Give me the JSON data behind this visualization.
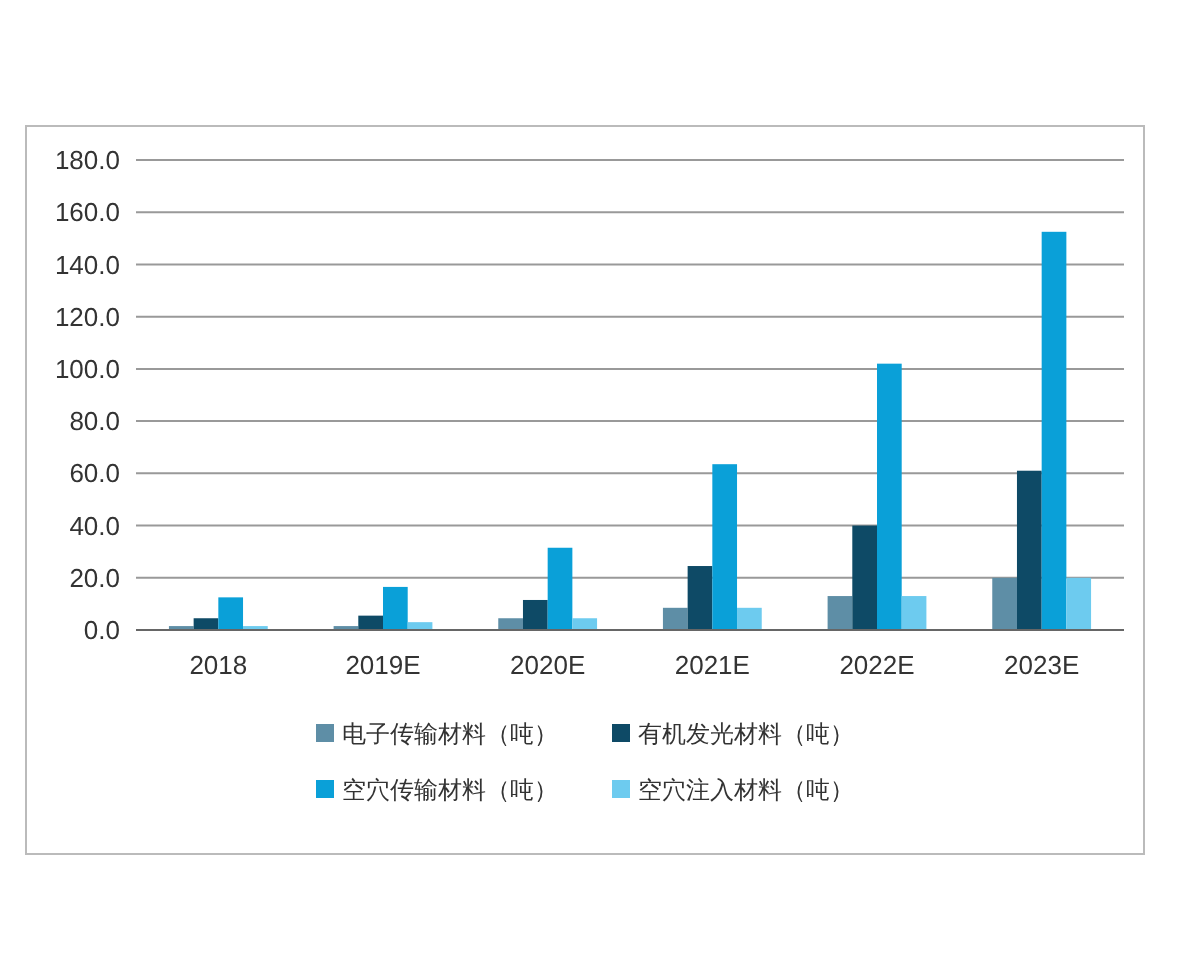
{
  "chart_data": {
    "type": "bar",
    "categories": [
      "2018",
      "2019E",
      "2020E",
      "2021E",
      "2022E",
      "2023E"
    ],
    "series": [
      {
        "name": "电子传输材料（吨）",
        "color": "#5e8ea6",
        "values": [
          1.5,
          1.5,
          4.5,
          8.5,
          13,
          20
        ]
      },
      {
        "name": "有机发光材料（吨）",
        "color": "#0e4a66",
        "values": [
          4.5,
          5.5,
          11.5,
          24.5,
          40,
          61
        ]
      },
      {
        "name": "空穴传输材料（吨）",
        "color": "#0aa0d8",
        "values": [
          12.5,
          16.5,
          31.5,
          63.5,
          102,
          152.5
        ]
      },
      {
        "name": "空穴注入材料（吨）",
        "color": "#6dcbef",
        "values": [
          1.5,
          3,
          4.5,
          8.5,
          13,
          20
        ]
      }
    ],
    "ylim": [
      0,
      180
    ],
    "yticks": [
      {
        "value": 0,
        "label": "0.0"
      },
      {
        "value": 20,
        "label": "20.0"
      },
      {
        "value": 40,
        "label": "40.0"
      },
      {
        "value": 60,
        "label": "60.0"
      },
      {
        "value": 80,
        "label": "80.0"
      },
      {
        "value": 100,
        "label": "100.0"
      },
      {
        "value": 120,
        "label": "120.0"
      },
      {
        "value": 140,
        "label": "140.0"
      },
      {
        "value": 160,
        "label": "160.0"
      },
      {
        "value": 180,
        "label": "180.0"
      }
    ],
    "grid": "y",
    "legend": "bottom"
  }
}
